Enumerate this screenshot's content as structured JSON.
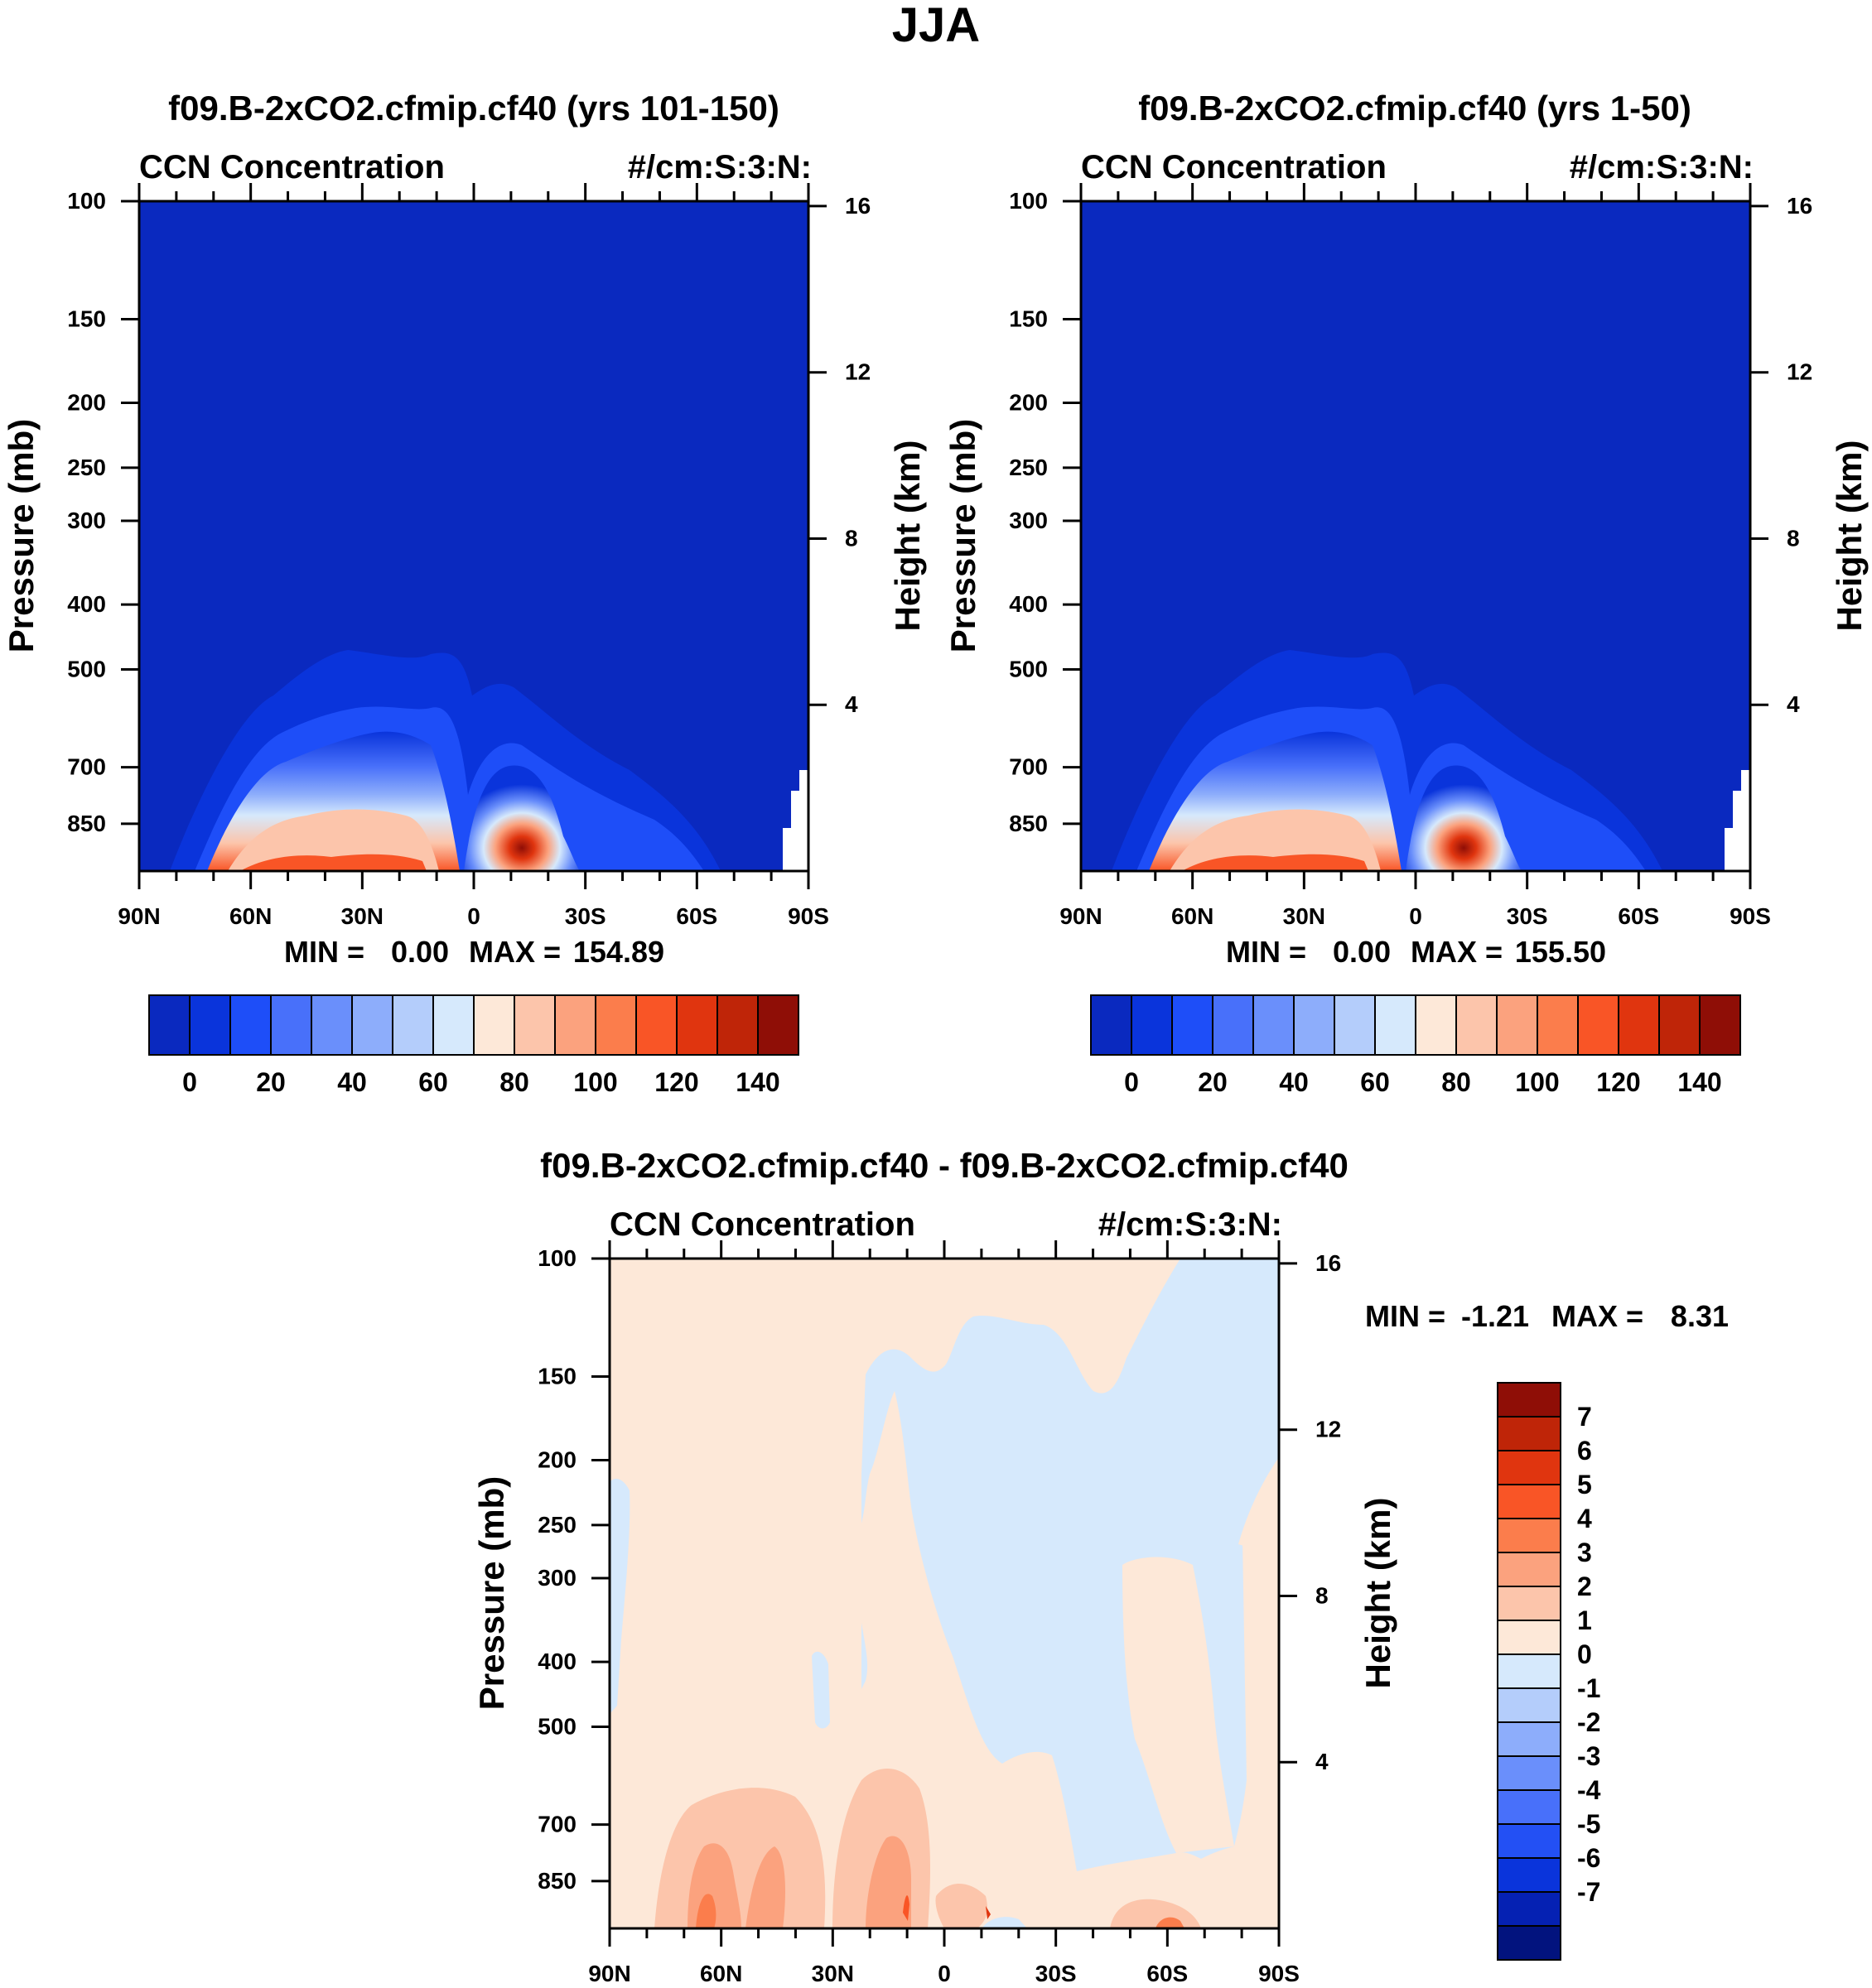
{
  "main_title": "JJA",
  "colors": {
    "pos": [
      "#fde8d8",
      "#fcc5ab",
      "#fba27e",
      "#fb7d4c",
      "#f95526",
      "#e0350f",
      "#bf2508",
      "#8f0e06"
    ],
    "neg": [
      "#d6e9fc",
      "#b4cdfb",
      "#8dadfb",
      "#6a8ffb",
      "#4870fa",
      "#2350f4",
      "#0a34db",
      "#0521b3",
      "#02137e"
    ],
    "abs_bins": [
      "#02137e",
      "#0a29bf",
      "#0a34db",
      "#1e4ef8",
      "#4870fa",
      "#6a8ffb",
      "#8dadfb",
      "#b4cdfb",
      "#d6e9fc",
      "#fde8d8",
      "#fcc5ab",
      "#fba27e",
      "#fb7d4c",
      "#f95526",
      "#e0350f",
      "#bf2508",
      "#8f0e06"
    ]
  },
  "chart_data": [
    {
      "type": "heatmap",
      "id": "panel1",
      "title": "f09.B-2xCO2.cfmip.cf40 (yrs 101-150)",
      "left_subtitle": "CCN Concentration",
      "right_subtitle": "#/cm:S:3:N:",
      "ylabel": "Pressure (mb)",
      "ylabel_right": "Height (km)",
      "x_ticks": [
        "90N",
        "60N",
        "30N",
        "0",
        "30S",
        "60S",
        "90S"
      ],
      "x_values": [
        90,
        60,
        30,
        0,
        -30,
        -60,
        -90
      ],
      "y_ticks": [
        "100",
        "150",
        "200",
        "250",
        "300",
        "400",
        "500",
        "700",
        "850"
      ],
      "y_values": [
        100,
        150,
        200,
        250,
        300,
        400,
        500,
        700,
        850
      ],
      "y_range": [
        100,
        1000
      ],
      "height_ticks": [
        "16",
        "12",
        "8",
        "4"
      ],
      "height_values": [
        16,
        12,
        8,
        4
      ],
      "min_label": "MIN =",
      "min_value": "0.00",
      "max_label": "MAX =",
      "max_value": "154.89",
      "colorbar_labels": [
        "0",
        "20",
        "40",
        "60",
        "80",
        "100",
        "120",
        "140"
      ]
    },
    {
      "type": "heatmap",
      "id": "panel2",
      "title": "f09.B-2xCO2.cfmip.cf40 (yrs 1-50)",
      "left_subtitle": "CCN Concentration",
      "right_subtitle": "#/cm:S:3:N:",
      "ylabel": "Pressure (mb)",
      "ylabel_right": "Height (km)",
      "x_ticks": [
        "90N",
        "60N",
        "30N",
        "0",
        "30S",
        "60S",
        "90S"
      ],
      "x_values": [
        90,
        60,
        30,
        0,
        -30,
        -60,
        -90
      ],
      "y_ticks": [
        "100",
        "150",
        "200",
        "250",
        "300",
        "400",
        "500",
        "700",
        "850"
      ],
      "y_values": [
        100,
        150,
        200,
        250,
        300,
        400,
        500,
        700,
        850
      ],
      "y_range": [
        100,
        1000
      ],
      "height_ticks": [
        "16",
        "12",
        "8",
        "4"
      ],
      "height_values": [
        16,
        12,
        8,
        4
      ],
      "min_label": "MIN =",
      "min_value": "0.00",
      "max_label": "MAX =",
      "max_value": "155.50",
      "colorbar_labels": [
        "0",
        "20",
        "40",
        "60",
        "80",
        "100",
        "120",
        "140"
      ]
    },
    {
      "type": "heatmap",
      "id": "panel3",
      "title": "f09.B-2xCO2.cfmip.cf40 - f09.B-2xCO2.cfmip.cf40",
      "left_subtitle": "CCN Concentration",
      "right_subtitle": "#/cm:S:3:N:",
      "ylabel": "Pressure (mb)",
      "ylabel_right": "Height (km)",
      "x_ticks": [
        "90N",
        "60N",
        "30N",
        "0",
        "30S",
        "60S",
        "90S"
      ],
      "x_values": [
        90,
        60,
        30,
        0,
        -30,
        -60,
        -90
      ],
      "y_ticks": [
        "100",
        "150",
        "200",
        "250",
        "300",
        "400",
        "500",
        "700",
        "850"
      ],
      "y_values": [
        100,
        150,
        200,
        250,
        300,
        400,
        500,
        700,
        850
      ],
      "y_range": [
        100,
        1000
      ],
      "height_ticks": [
        "16",
        "12",
        "8",
        "4"
      ],
      "height_values": [
        16,
        12,
        8,
        4
      ],
      "min_label": "MIN =",
      "min_value": "-1.21",
      "max_label": "MAX =",
      "max_value": "8.31",
      "colorbar_labels": [
        "7",
        "6",
        "5",
        "4",
        "3",
        "2",
        "1",
        "0",
        "-1",
        "-2",
        "-3",
        "-4",
        "-5",
        "-6",
        "-7"
      ]
    }
  ]
}
